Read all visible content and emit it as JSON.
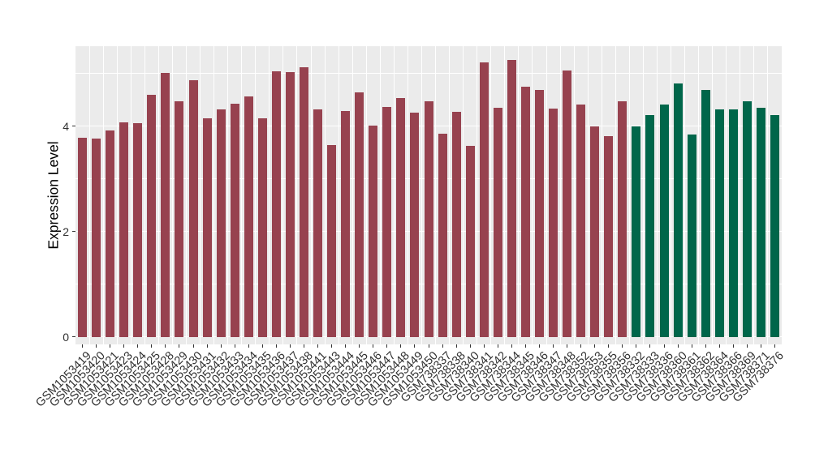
{
  "chart_data": {
    "type": "bar",
    "title": "",
    "xlabel": "",
    "ylabel": "Expression Level",
    "ylim": [
      0,
      5.52
    ],
    "yticks": [
      "0",
      "2",
      "4"
    ],
    "minor_gridlines_at": [
      1,
      3,
      5
    ],
    "major_gridlines_at": [
      0,
      2,
      4
    ],
    "grid": true,
    "legend": "none",
    "panel_bg": "#EBEBEB",
    "grid_color": "#FFFFFF",
    "tick_color": "#333333",
    "groups": [
      {
        "id": "maroon-group",
        "color": "#97424F"
      },
      {
        "id": "green-group",
        "color": "#00664A"
      }
    ],
    "bars": [
      {
        "label": "GSM1053419",
        "value": 3.78,
        "group": 0
      },
      {
        "label": "GSM1053420",
        "value": 3.76,
        "group": 0
      },
      {
        "label": "GSM1053421",
        "value": 3.92,
        "group": 0
      },
      {
        "label": "GSM1053423",
        "value": 4.07,
        "group": 0
      },
      {
        "label": "GSM1053424",
        "value": 4.06,
        "group": 0
      },
      {
        "label": "GSM1053425",
        "value": 4.59,
        "group": 0
      },
      {
        "label": "GSM1053428",
        "value": 5.01,
        "group": 0
      },
      {
        "label": "GSM1053429",
        "value": 4.47,
        "group": 0
      },
      {
        "label": "GSM1053430",
        "value": 4.87,
        "group": 0
      },
      {
        "label": "GSM1053431",
        "value": 4.14,
        "group": 0
      },
      {
        "label": "GSM1053432",
        "value": 4.31,
        "group": 0
      },
      {
        "label": "GSM1053433",
        "value": 4.42,
        "group": 0
      },
      {
        "label": "GSM1053434",
        "value": 4.56,
        "group": 0
      },
      {
        "label": "GSM1053435",
        "value": 4.14,
        "group": 0
      },
      {
        "label": "GSM1053436",
        "value": 5.04,
        "group": 0
      },
      {
        "label": "GSM1053437",
        "value": 5.02,
        "group": 0
      },
      {
        "label": "GSM1053438",
        "value": 5.12,
        "group": 0
      },
      {
        "label": "GSM1053441",
        "value": 4.32,
        "group": 0
      },
      {
        "label": "GSM1053443",
        "value": 3.64,
        "group": 0
      },
      {
        "label": "GSM1053444",
        "value": 4.28,
        "group": 0
      },
      {
        "label": "GSM1053445",
        "value": 4.64,
        "group": 0
      },
      {
        "label": "GSM1053446",
        "value": 4.01,
        "group": 0
      },
      {
        "label": "GSM1053447",
        "value": 4.36,
        "group": 0
      },
      {
        "label": "GSM1053448",
        "value": 4.53,
        "group": 0
      },
      {
        "label": "GSM1053449",
        "value": 4.26,
        "group": 0
      },
      {
        "label": "GSM1053450",
        "value": 4.47,
        "group": 0
      },
      {
        "label": "GSM738337",
        "value": 3.85,
        "group": 0
      },
      {
        "label": "GSM738338",
        "value": 4.27,
        "group": 0
      },
      {
        "label": "GSM738340",
        "value": 3.63,
        "group": 0
      },
      {
        "label": "GSM738341",
        "value": 5.21,
        "group": 0
      },
      {
        "label": "GSM738342",
        "value": 4.35,
        "group": 0
      },
      {
        "label": "GSM738344",
        "value": 5.26,
        "group": 0
      },
      {
        "label": "GSM738345",
        "value": 4.75,
        "group": 0
      },
      {
        "label": "GSM738346",
        "value": 4.69,
        "group": 0
      },
      {
        "label": "GSM738347",
        "value": 4.33,
        "group": 0
      },
      {
        "label": "GSM738348",
        "value": 5.05,
        "group": 0
      },
      {
        "label": "GSM738352",
        "value": 4.41,
        "group": 0
      },
      {
        "label": "GSM738353",
        "value": 4.0,
        "group": 0
      },
      {
        "label": "GSM738355",
        "value": 3.81,
        "group": 0
      },
      {
        "label": "GSM738356",
        "value": 4.47,
        "group": 0
      },
      {
        "label": "GSM738332",
        "value": 4.0,
        "group": 1
      },
      {
        "label": "GSM738333",
        "value": 4.2,
        "group": 1
      },
      {
        "label": "GSM738336",
        "value": 4.41,
        "group": 1
      },
      {
        "label": "GSM738360",
        "value": 4.81,
        "group": 1
      },
      {
        "label": "GSM738361",
        "value": 3.84,
        "group": 1
      },
      {
        "label": "GSM738362",
        "value": 4.69,
        "group": 1
      },
      {
        "label": "GSM738364",
        "value": 4.31,
        "group": 1
      },
      {
        "label": "GSM738366",
        "value": 4.32,
        "group": 1
      },
      {
        "label": "GSM738369",
        "value": 4.47,
        "group": 1
      },
      {
        "label": "GSM738371",
        "value": 4.35,
        "group": 1
      },
      {
        "label": "GSM738376",
        "value": 4.21,
        "group": 1
      }
    ]
  }
}
